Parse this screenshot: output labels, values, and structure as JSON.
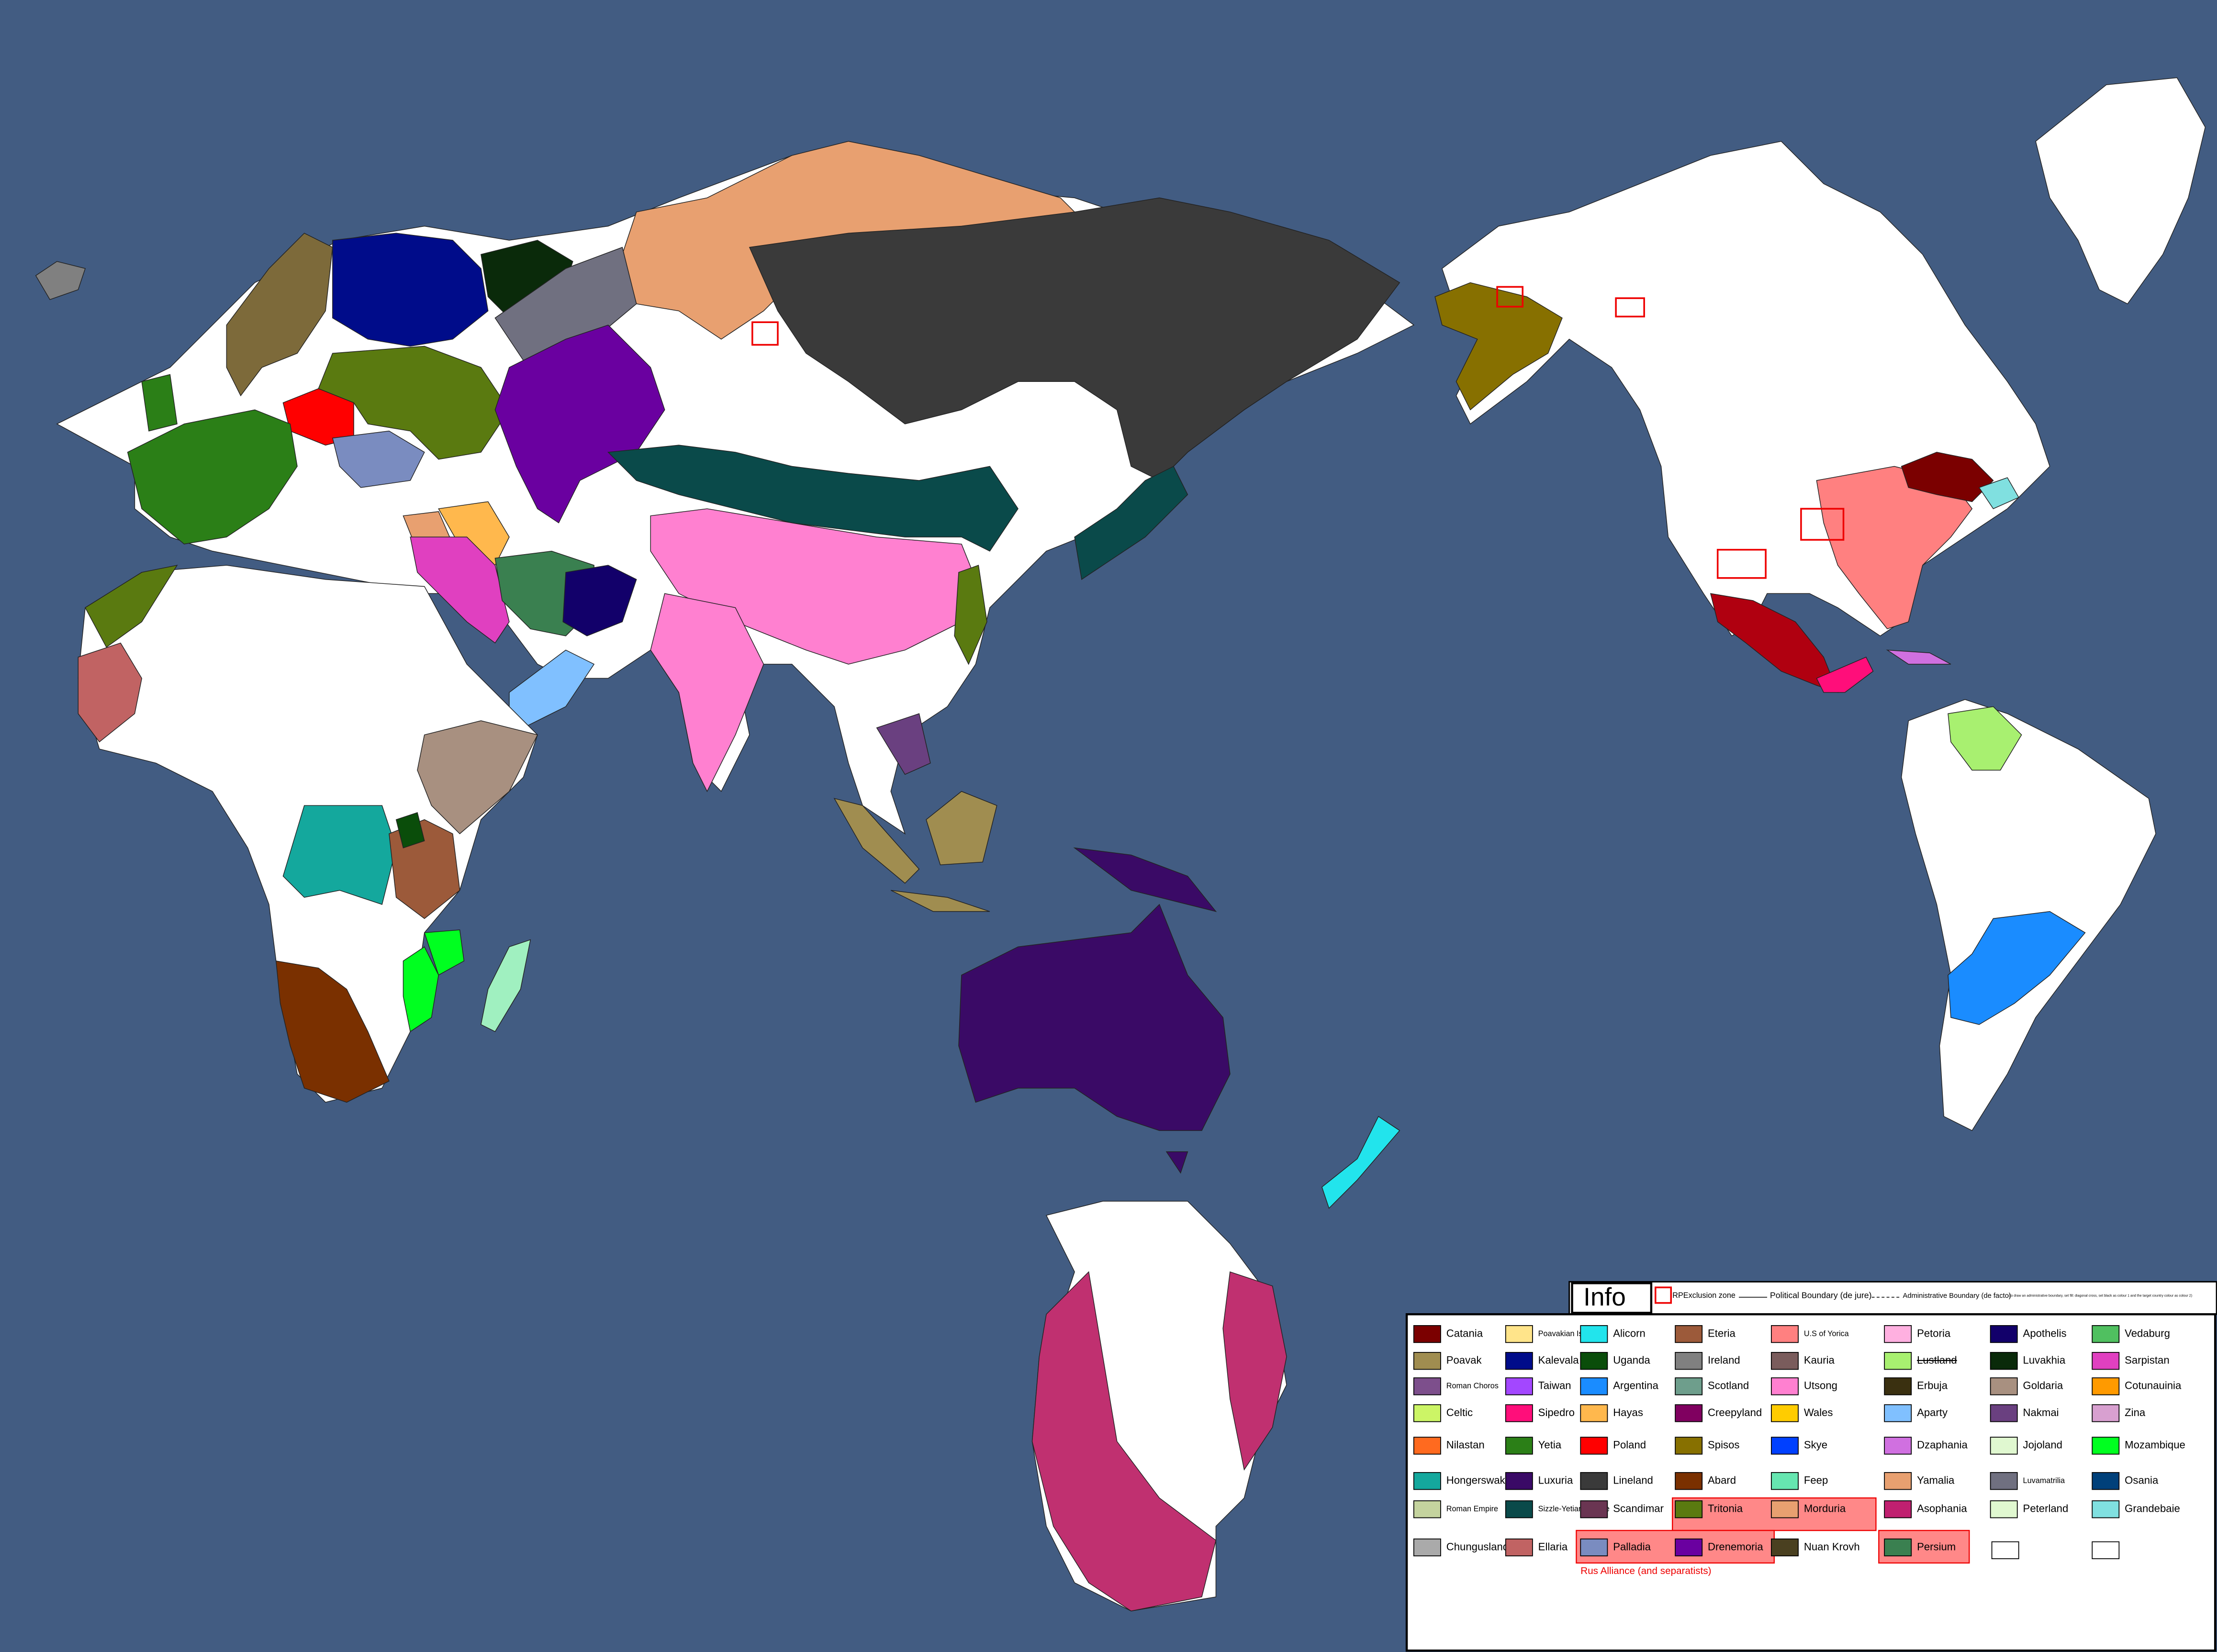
{
  "legend_header": {
    "title": "Info",
    "exclusion": "RPExclusion zone",
    "political": "Political Boundary (de jure)",
    "administrative": "Administrative Boundary (de facto)",
    "note": "(to draw an administrative boundary, set fill: diagonal cross, set black as colour 1 and the target country colour as colour 2)"
  },
  "legend": {
    "columns": [
      [
        {
          "label": "Catania",
          "color": "#7b0000"
        },
        {
          "label": "Poavak",
          "color": "#a08d50"
        },
        {
          "label": "Roman Choros",
          "color": "#7d4f8c"
        },
        {
          "label": "Celtic",
          "color": "#ccf566"
        },
        {
          "label": "Nilastan",
          "color": "#ff6a1f"
        },
        {
          "label": "Hongerswak",
          "color": "#14a89d"
        },
        {
          "label": "Roman Empire",
          "color": "#c4d39e"
        },
        {
          "label": "Chungusland",
          "color": "#aaaaaa"
        }
      ],
      [
        {
          "label": "Poavakian Islandia",
          "color": "#ffe48a"
        },
        {
          "label": "Kalevala",
          "color": "#000c8a"
        },
        {
          "label": "Taiwan",
          "color": "#a347ff"
        },
        {
          "label": "Sipedro",
          "color": "#ff0e7a"
        },
        {
          "label": "Yetia",
          "color": "#2b7f17"
        },
        {
          "label": "Luxuria",
          "color": "#3a0a66"
        },
        {
          "label": "Sizzle-Yetian Empire",
          "color": "#0a4a4a"
        },
        {
          "label": "Ellaria",
          "color": "#c16363"
        }
      ],
      [
        {
          "label": "Alicorn",
          "color": "#22e4ec"
        },
        {
          "label": "Uganda",
          "color": "#0a4d0a"
        },
        {
          "label": "Argentina",
          "color": "#1a8cff"
        },
        {
          "label": "Hayas",
          "color": "#ffb84d"
        },
        {
          "label": "Poland",
          "color": "#ff0000"
        },
        {
          "label": "Lineland",
          "color": "#3a3a3a"
        },
        {
          "label": "Scandimar",
          "color": "#6a3552"
        },
        {
          "label": "Palladia",
          "color": "#7a8cc0"
        }
      ],
      [
        {
          "label": "Eteria",
          "color": "#9c5a3a"
        },
        {
          "label": "Ireland",
          "color": "#808080"
        },
        {
          "label": "Scotland",
          "color": "#6e9e8c"
        },
        {
          "label": "Creepyland",
          "color": "#800060"
        },
        {
          "label": "Spisos",
          "color": "#877000"
        },
        {
          "label": "Abard",
          "color": "#7a3000"
        },
        {
          "label": "Tritonia",
          "color": "#5a7a10"
        },
        {
          "label": "Drenemoria",
          "color": "#6a00a0"
        }
      ],
      [
        {
          "label": "U.S of Yorica",
          "color": "#ff8080"
        },
        {
          "label": "Kauria",
          "color": "#7a5c5c"
        },
        {
          "label": "Utsong",
          "color": "#ff80d0"
        },
        {
          "label": "Wales",
          "color": "#ffcc00"
        },
        {
          "label": "Skye",
          "color": "#0040ff"
        },
        {
          "label": "Feep",
          "color": "#66e6b0"
        },
        {
          "label": "Morduria",
          "color": "#e8a070"
        },
        {
          "label": "Nuan Krovh",
          "color": "#4a4020"
        }
      ],
      [
        {
          "label": "Petoria",
          "color": "#ffb0e0"
        },
        {
          "label": "Lustland",
          "color": "#a8f070",
          "struck": true
        },
        {
          "label": "Erbuja",
          "color": "#3a3010"
        },
        {
          "label": "Aparty",
          "color": "#80c0ff"
        },
        {
          "label": "Dzaphania",
          "color": "#d070e0"
        },
        {
          "label": "Yamalia",
          "color": "#e8a070"
        },
        {
          "label": "Asophania",
          "color": "#c02070"
        },
        {
          "label": "Persium",
          "color": "#3a8050"
        }
      ],
      [
        {
          "label": "Apothelis",
          "color": "#12006a"
        },
        {
          "label": "Luvakhia",
          "color": "#0a2a0a"
        },
        {
          "label": "Goldaria",
          "color": "#a89080"
        },
        {
          "label": "Nakmai",
          "color": "#6a4080"
        },
        {
          "label": "Jojoland",
          "color": "#e0f8d0"
        },
        {
          "label": "Luvamatrilia",
          "color": "#707080"
        },
        {
          "label": "Peterland",
          "color": "#e0f8d0"
        }
      ],
      [
        {
          "label": "Vedaburg",
          "color": "#50c060"
        },
        {
          "label": "Sarpistan",
          "color": "#e040c0"
        },
        {
          "label": "Cotunauinia",
          "color": "#ff9a00"
        },
        {
          "label": "Zina",
          "color": "#d8a0d0"
        },
        {
          "label": "Mozambique",
          "color": "#00ff20"
        },
        {
          "label": "Osania",
          "color": "#00407a"
        },
        {
          "label": "Grandebaie",
          "color": "#80e0e0"
        }
      ]
    ]
  },
  "alliance_note": "Rus Alliance (and separatists)"
}
